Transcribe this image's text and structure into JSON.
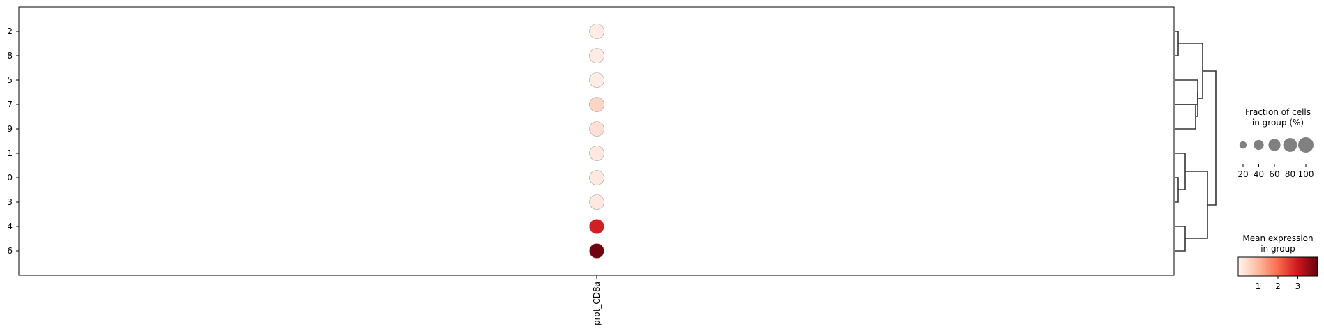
{
  "chart_data": {
    "type": "dotplot",
    "title": "",
    "xlabel": "",
    "ylabel": "",
    "genes": [
      "prot_CD8a"
    ],
    "groups": [
      "2",
      "8",
      "5",
      "7",
      "9",
      "1",
      "0",
      "3",
      "4",
      "6"
    ],
    "points": [
      {
        "group": "2",
        "gene": "prot_CD8a",
        "fraction_pct": 100,
        "mean_expression": 0.15
      },
      {
        "group": "8",
        "gene": "prot_CD8a",
        "fraction_pct": 100,
        "mean_expression": 0.15
      },
      {
        "group": "5",
        "gene": "prot_CD8a",
        "fraction_pct": 100,
        "mean_expression": 0.15
      },
      {
        "group": "7",
        "gene": "prot_CD8a",
        "fraction_pct": 100,
        "mean_expression": 0.55
      },
      {
        "group": "9",
        "gene": "prot_CD8a",
        "fraction_pct": 100,
        "mean_expression": 0.35
      },
      {
        "group": "1",
        "gene": "prot_CD8a",
        "fraction_pct": 100,
        "mean_expression": 0.2
      },
      {
        "group": "0",
        "gene": "prot_CD8a",
        "fraction_pct": 100,
        "mean_expression": 0.2
      },
      {
        "group": "3",
        "gene": "prot_CD8a",
        "fraction_pct": 100,
        "mean_expression": 0.2
      },
      {
        "group": "4",
        "gene": "prot_CD8a",
        "fraction_pct": 100,
        "mean_expression": 2.9
      },
      {
        "group": "6",
        "gene": "prot_CD8a",
        "fraction_pct": 100,
        "mean_expression": 3.9
      }
    ],
    "size_legend": {
      "title_lines": [
        "Fraction of cells",
        "in group (%)"
      ],
      "values": [
        20,
        40,
        60,
        80,
        100
      ],
      "tick_labels": [
        "20",
        "40",
        "60",
        "80",
        "100"
      ]
    },
    "color_legend": {
      "title_lines": [
        "Mean expression",
        "in group"
      ],
      "colormap": "Reds",
      "range": [
        0,
        4
      ],
      "ticks": [
        1,
        2,
        3
      ],
      "tick_labels": [
        "1",
        "2",
        "3"
      ],
      "colors": [
        "#fff5f0",
        "#fcbba1",
        "#fb6a4a",
        "#cb181d",
        "#67000d"
      ]
    },
    "dendrogram": "shown at right, clustering groups"
  }
}
